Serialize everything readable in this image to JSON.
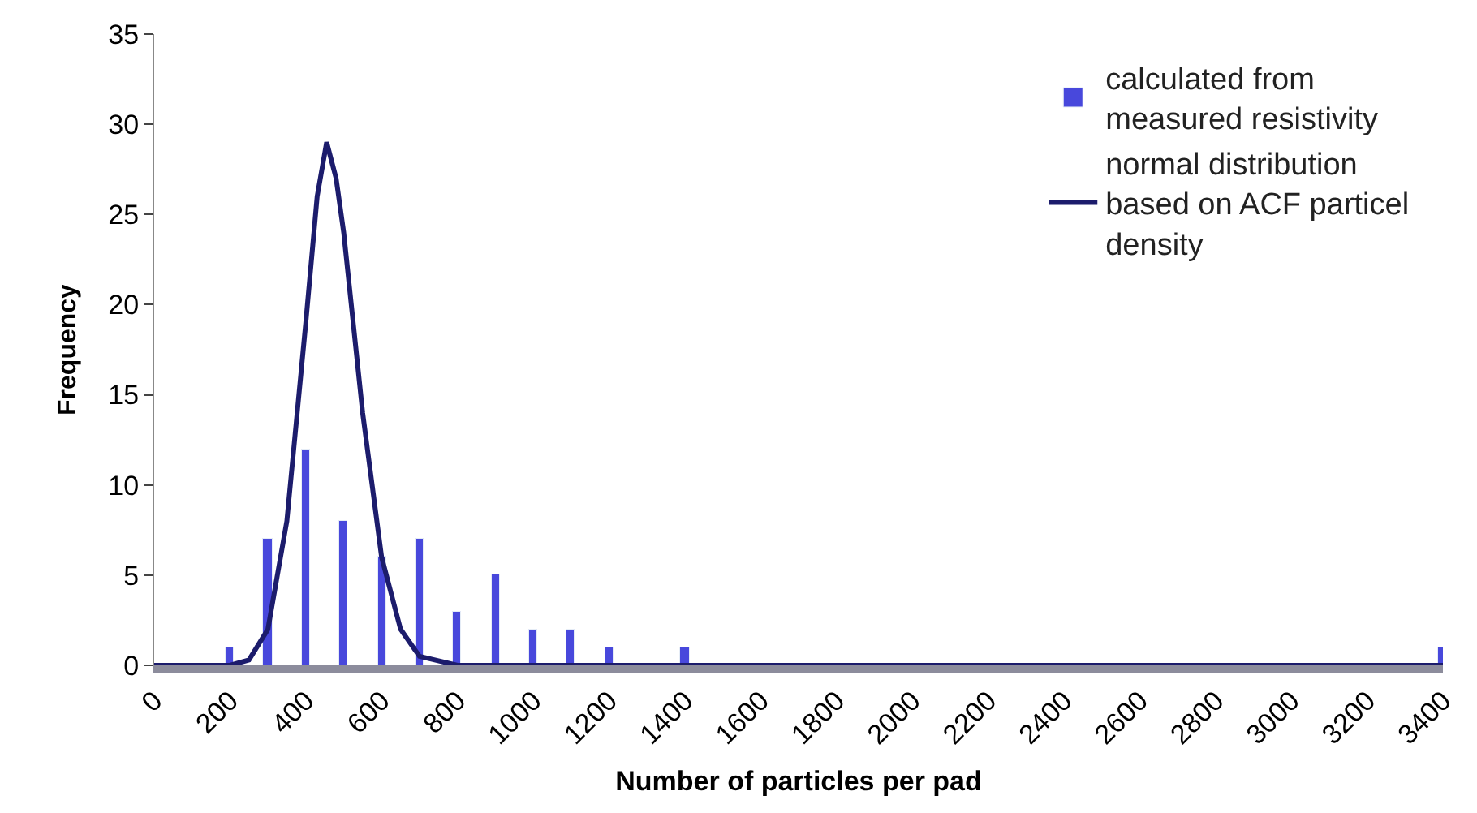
{
  "chart_data": {
    "type": "bar",
    "xlabel": "Number of particles per pad",
    "ylabel": "Frequency",
    "xlim": [
      0,
      3400
    ],
    "xticks": [
      0,
      200,
      400,
      600,
      800,
      1000,
      1200,
      1400,
      1600,
      1800,
      2000,
      2200,
      2400,
      2600,
      2800,
      3000,
      3200,
      3400
    ],
    "ylim": [
      0,
      35
    ],
    "yticks": [
      0,
      5,
      10,
      15,
      20,
      25,
      30,
      35
    ],
    "legend": "top right",
    "series": [
      {
        "name": "calculated from measured resistivity",
        "color": "#4848dc",
        "x": [
          200,
          300,
          400,
          500,
          600,
          700,
          800,
          900,
          1000,
          1100,
          1200,
          1400,
          3400
        ],
        "values": [
          1,
          7,
          12,
          8,
          6,
          7,
          3,
          5,
          2,
          2,
          1,
          1,
          1
        ]
      },
      {
        "name": "normal distribution based on ACF particel density",
        "type": "line",
        "color": "#1c1c6c",
        "x": [
          0,
          200,
          250,
          300,
          350,
          400,
          430,
          455,
          480,
          500,
          550,
          600,
          650,
          700,
          800,
          3400
        ],
        "values": [
          0,
          0,
          0.3,
          2,
          8,
          19,
          26,
          29,
          27,
          24,
          14,
          6,
          2,
          0.5,
          0,
          0
        ]
      }
    ]
  }
}
